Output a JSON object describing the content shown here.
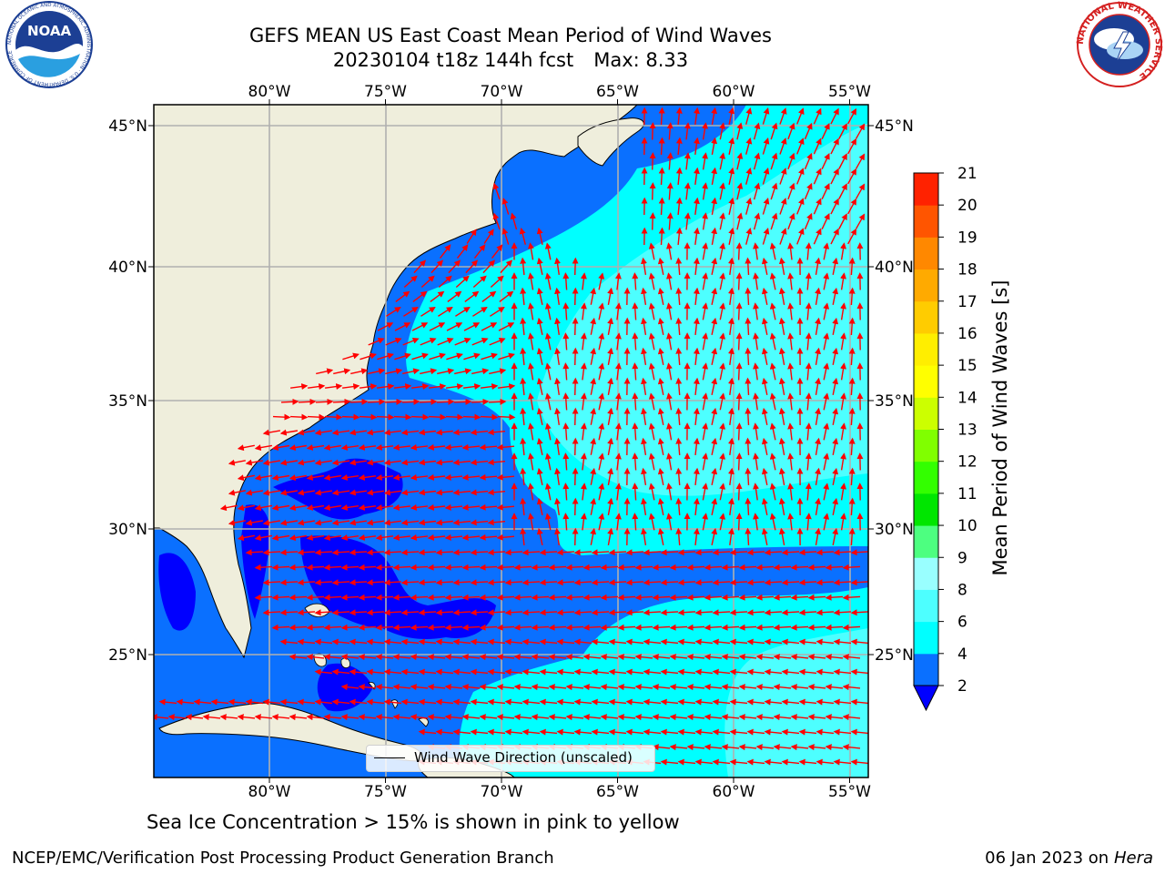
{
  "header": {
    "title": "GEFS MEAN US East Coast Mean Period of Wind Waves",
    "run": "20230104 t18z 144h fcst",
    "max_label": "Max: 8.33"
  },
  "logos": {
    "noaa": {
      "text": "NOAA",
      "ring_text": "NATIONAL OCEANIC AND ATMOSPHERIC ADMINISTRATION · U.S. DEPARTMENT OF COMMERCE"
    },
    "nws": {
      "ring_text": "NATIONAL WEATHER SERVICE"
    }
  },
  "map": {
    "lon_labels": [
      "80°W",
      "75°W",
      "70°W",
      "65°W",
      "60°W",
      "55°W"
    ],
    "lon_values": [
      -80,
      -75,
      -70,
      -65,
      -60,
      -55
    ],
    "lat_labels": [
      "45°N",
      "40°N",
      "35°N",
      "30°N",
      "25°N"
    ],
    "lat_values": [
      45,
      40,
      35,
      30,
      25
    ],
    "colors": {
      "land": "#efeedc",
      "coast": "#000000",
      "grid": "#b0b0b0",
      "arrow": "#ff0000"
    },
    "legend_label": "Wind Wave Direction (unscaled)"
  },
  "colorbar": {
    "label": "Mean Period of Wind Waves [s]",
    "ticks": [
      "2",
      "4",
      "6",
      "8",
      "9",
      "10",
      "11",
      "12",
      "13",
      "14",
      "15",
      "16",
      "17",
      "18",
      "19",
      "20",
      "21"
    ],
    "colors": [
      "#0a70ff",
      "#00ffff",
      "#4dffff",
      "#99ffff",
      "#4dff80",
      "#00e600",
      "#33ff00",
      "#80ff00",
      "#ccff00",
      "#ffff00",
      "#ffee00",
      "#ffcc00",
      "#ffaa00",
      "#ff8800",
      "#ff5500",
      "#ff2200"
    ],
    "under_color": "#0000ff"
  },
  "captions": {
    "sea_ice": "Sea Ice Concentration > 15% is shown in pink to yellow",
    "footer_left": "NCEP/EMC/Verification Post Processing Product Generation Branch",
    "footer_date": "06 Jan 2023 on",
    "footer_host": "Hera"
  }
}
